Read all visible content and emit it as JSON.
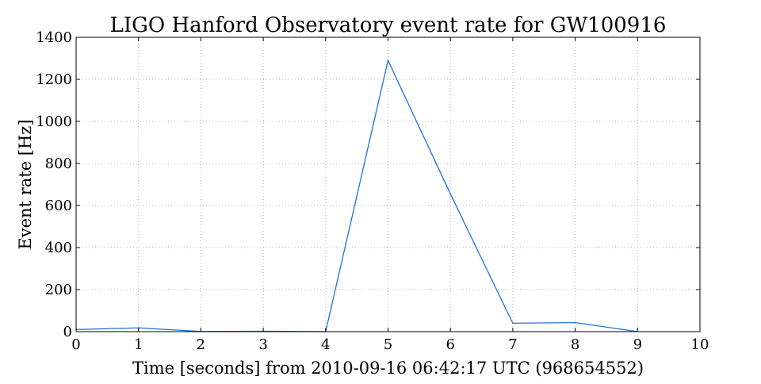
{
  "chart_data": {
    "type": "line",
    "title": "LIGO Hanford Observatory event rate for GW100916",
    "xlabel": "Time [seconds] from 2010-09-16 06:42:17 UTC (968654552)",
    "ylabel": "Event rate [Hz]",
    "xlim": [
      0,
      10
    ],
    "ylim": [
      0,
      1400
    ],
    "x_ticks": [
      0,
      1,
      2,
      3,
      4,
      5,
      6,
      7,
      8,
      9,
      10
    ],
    "y_ticks": [
      0,
      200,
      400,
      600,
      800,
      1000,
      1200,
      1400
    ],
    "x_tick_labels": [
      "0",
      "1",
      "2",
      "3",
      "4",
      "5",
      "6",
      "7",
      "8",
      "9",
      "10"
    ],
    "y_tick_labels": [
      "0",
      "200",
      "400",
      "600",
      "800",
      "1000",
      "1200",
      "1400"
    ],
    "grid": true,
    "series": [
      {
        "color": "#1f6fe0",
        "x": [
          0,
          1,
          2,
          3,
          4,
          5,
          6,
          7,
          8,
          9
        ],
        "y": [
          10,
          18,
          1,
          2,
          0,
          1290,
          655,
          40,
          43,
          0
        ]
      }
    ]
  }
}
